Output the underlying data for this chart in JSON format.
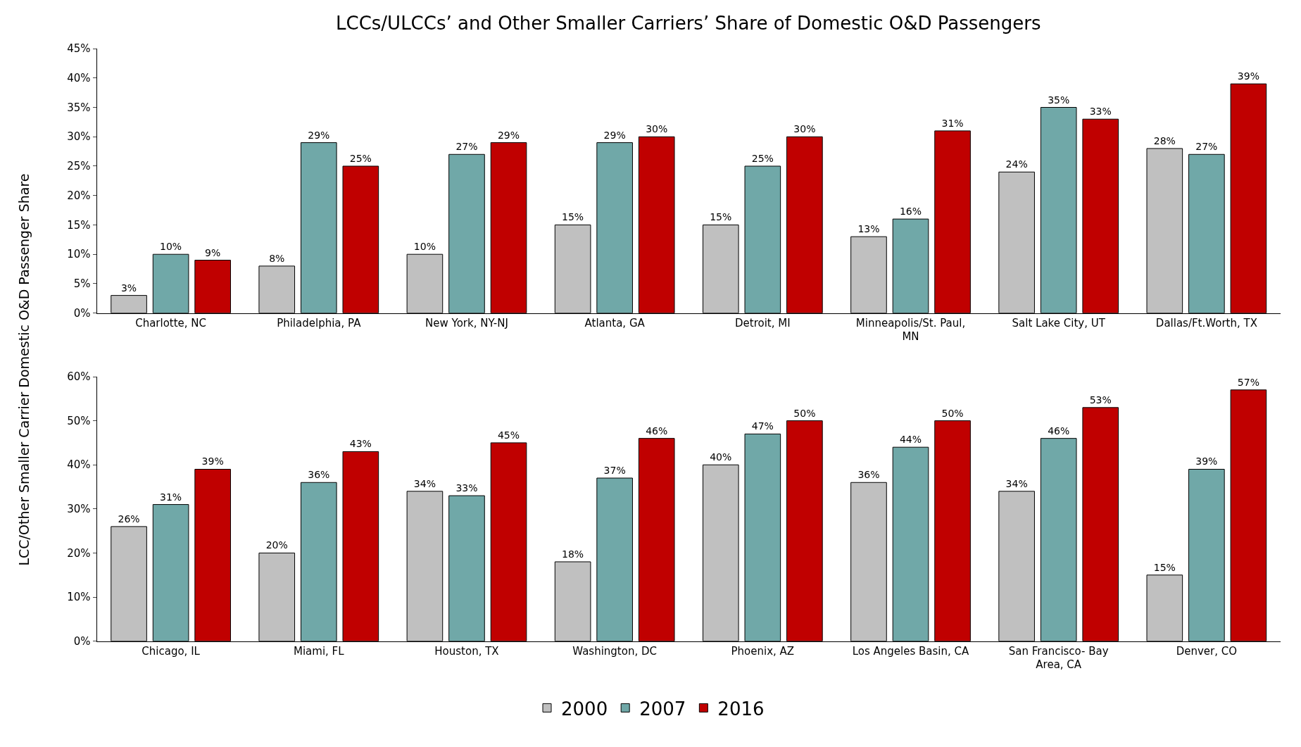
{
  "chart_data": [
    {
      "type": "bar",
      "title": "LCCs/ULCCs’ and Other Smaller Carriers’ Share of Domestic O&D Passengers",
      "ylabel": "LCC/Other Smaller Carrier Domestic O&D Passenger Share",
      "categories": [
        "Charlotte, NC",
        "Philadelphia, PA",
        "New York, NY-NJ",
        "Atlanta, GA",
        "Detroit, MI",
        "Minneapolis/St. Paul, MN",
        "Salt Lake City, UT",
        "Dallas/Ft.Worth, TX"
      ],
      "series": [
        {
          "name": "2000",
          "color": "#c0c0c0",
          "values": [
            3,
            8,
            10,
            15,
            15,
            13,
            24,
            28
          ],
          "value_labels": [
            "3%",
            "8%",
            "10%",
            "15%",
            "15%",
            "13%",
            "24%",
            "28%"
          ]
        },
        {
          "name": "2007",
          "color": "#70a8a8",
          "values": [
            10,
            29,
            27,
            29,
            25,
            16,
            35,
            27
          ],
          "value_labels": [
            "10%",
            "29%",
            "27%",
            "29%",
            "25%",
            "16%",
            "35%",
            "27%"
          ]
        },
        {
          "name": "2016",
          "color": "#c00000",
          "values": [
            9,
            25,
            29,
            30,
            30,
            31,
            33,
            39
          ],
          "value_labels": [
            "9%",
            "25%",
            "29%",
            "30%",
            "30%",
            "31%",
            "33%",
            "39%"
          ]
        }
      ],
      "ylim": [
        0,
        45
      ],
      "yticks": [
        {
          "value": 0,
          "label": "0%"
        },
        {
          "value": 5,
          "label": "5%"
        },
        {
          "value": 10,
          "label": "10%"
        },
        {
          "value": 15,
          "label": "15%"
        },
        {
          "value": 20,
          "label": "20%"
        },
        {
          "value": 25,
          "label": "25%"
        },
        {
          "value": 30,
          "label": "30%"
        },
        {
          "value": 35,
          "label": "35%"
        },
        {
          "value": 40,
          "label": "40%"
        },
        {
          "value": 45,
          "label": "45%"
        }
      ],
      "grid": false,
      "legend": "bottom"
    },
    {
      "type": "bar",
      "categories": [
        "Chicago, IL",
        "Miami, FL",
        "Houston, TX",
        "Washington, DC",
        "Phoenix, AZ",
        "Los Angeles Basin, CA",
        "San Francisco- Bay Area, CA",
        "Denver, CO"
      ],
      "series": [
        {
          "name": "2000",
          "color": "#c0c0c0",
          "values": [
            26,
            20,
            34,
            18,
            40,
            36,
            34,
            15
          ],
          "value_labels": [
            "26%",
            "20%",
            "34%",
            "18%",
            "40%",
            "36%",
            "34%",
            "15%"
          ]
        },
        {
          "name": "2007",
          "color": "#70a8a8",
          "values": [
            31,
            36,
            33,
            37,
            47,
            44,
            46,
            39
          ],
          "value_labels": [
            "31%",
            "36%",
            "33%",
            "37%",
            "47%",
            "44%",
            "46%",
            "39%"
          ]
        },
        {
          "name": "2016",
          "color": "#c00000",
          "values": [
            39,
            43,
            45,
            46,
            50,
            50,
            53,
            57
          ],
          "value_labels": [
            "39%",
            "43%",
            "45%",
            "46%",
            "50%",
            "50%",
            "53%",
            "57%"
          ]
        }
      ],
      "ylim": [
        0,
        60
      ],
      "yticks": [
        {
          "value": 0,
          "label": "0%"
        },
        {
          "value": 10,
          "label": "10%"
        },
        {
          "value": 20,
          "label": "20%"
        },
        {
          "value": 30,
          "label": "30%"
        },
        {
          "value": 40,
          "label": "40%"
        },
        {
          "value": 50,
          "label": "50%"
        },
        {
          "value": 60,
          "label": "60%"
        }
      ],
      "grid": false,
      "legend": "bottom"
    }
  ]
}
